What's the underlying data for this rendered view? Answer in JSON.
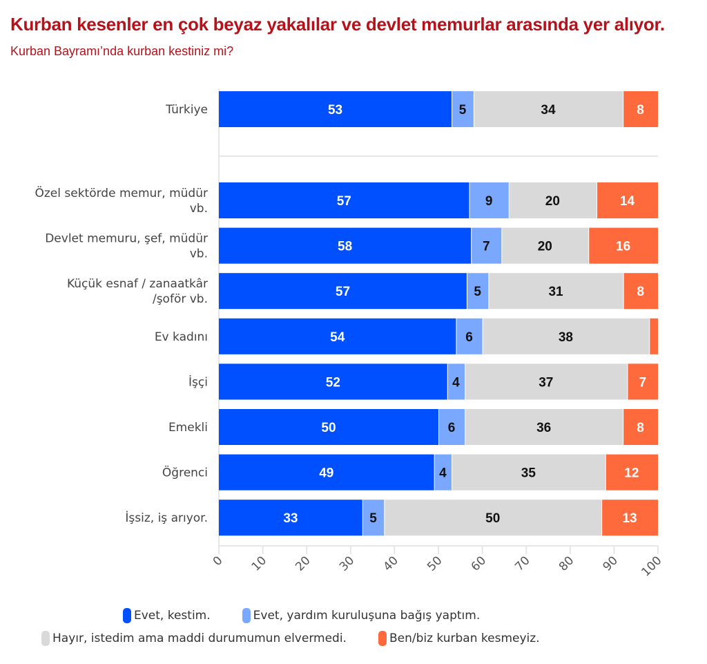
{
  "header": {
    "title": "Kurban kesenler en çok beyaz yakalılar ve devlet memurlar arasında yer alıyor.",
    "subtitle": "Kurban Bayramı’nda kurban kestiniz mi?"
  },
  "chart_data": {
    "type": "bar",
    "orientation": "horizontal",
    "stacked": true,
    "title": "Kurban kesenler en çok beyaz yakalılar ve devlet memurlar arasında yer alıyor.",
    "subtitle": "Kurban Bayramı’nda kurban kestiniz mi?",
    "xlabel": "",
    "ylabel": "",
    "xlim": [
      0,
      100
    ],
    "xticks": [
      "0",
      "10",
      "20",
      "30",
      "40",
      "50",
      "60",
      "70",
      "80",
      "90",
      "100"
    ],
    "grid": true,
    "legend_position": "bottom",
    "categories": [
      "Türkiye",
      "Özel sektörde memur, müdür vb.",
      "Devlet memuru, şef, müdür vb.",
      "Küçük esnaf / zanaatkâr /şoför vb.",
      "Ev kadını",
      "İşçi",
      "Emekli",
      "Öğrenci",
      "İşsiz, iş arıyor."
    ],
    "category_lines": [
      [
        "Türkiye"
      ],
      [
        "Özel sektörde memur, müdür",
        "vb."
      ],
      [
        "Devlet memuru, şef, müdür",
        "vb."
      ],
      [
        "Küçük esnaf / zanaatkâr",
        "/şoför vb."
      ],
      [
        "Ev kadını"
      ],
      [
        "İşçi"
      ],
      [
        "Emekli"
      ],
      [
        "Öğrenci"
      ],
      [
        "İşsiz, iş arıyor."
      ]
    ],
    "series": [
      {
        "name": "Evet, kestim.",
        "color": "#0050ff",
        "label_color": "#ffffff",
        "values": [
          53,
          57,
          58,
          57,
          54,
          52,
          50,
          49,
          33
        ]
      },
      {
        "name": "Evet, yardım kuruluşuna bağış yaptım.",
        "color": "#7aa8ff",
        "label_color": "#111111",
        "values": [
          5,
          9,
          7,
          5,
          6,
          4,
          6,
          4,
          5
        ]
      },
      {
        "name": "Hayır, istedim ama maddi durumumun elvermedi.",
        "color": "#d9d9d9",
        "label_color": "#111111",
        "values": [
          34,
          20,
          20,
          31,
          38,
          37,
          36,
          35,
          50
        ]
      },
      {
        "name": "Ben/biz kurban kesmeyiz.",
        "color": "#ff6a3d",
        "label_color": "#ffffff",
        "values": [
          8,
          14,
          16,
          8,
          2,
          7,
          8,
          12,
          13
        ]
      }
    ],
    "hidden_labels": [
      [
        4,
        3
      ]
    ]
  }
}
